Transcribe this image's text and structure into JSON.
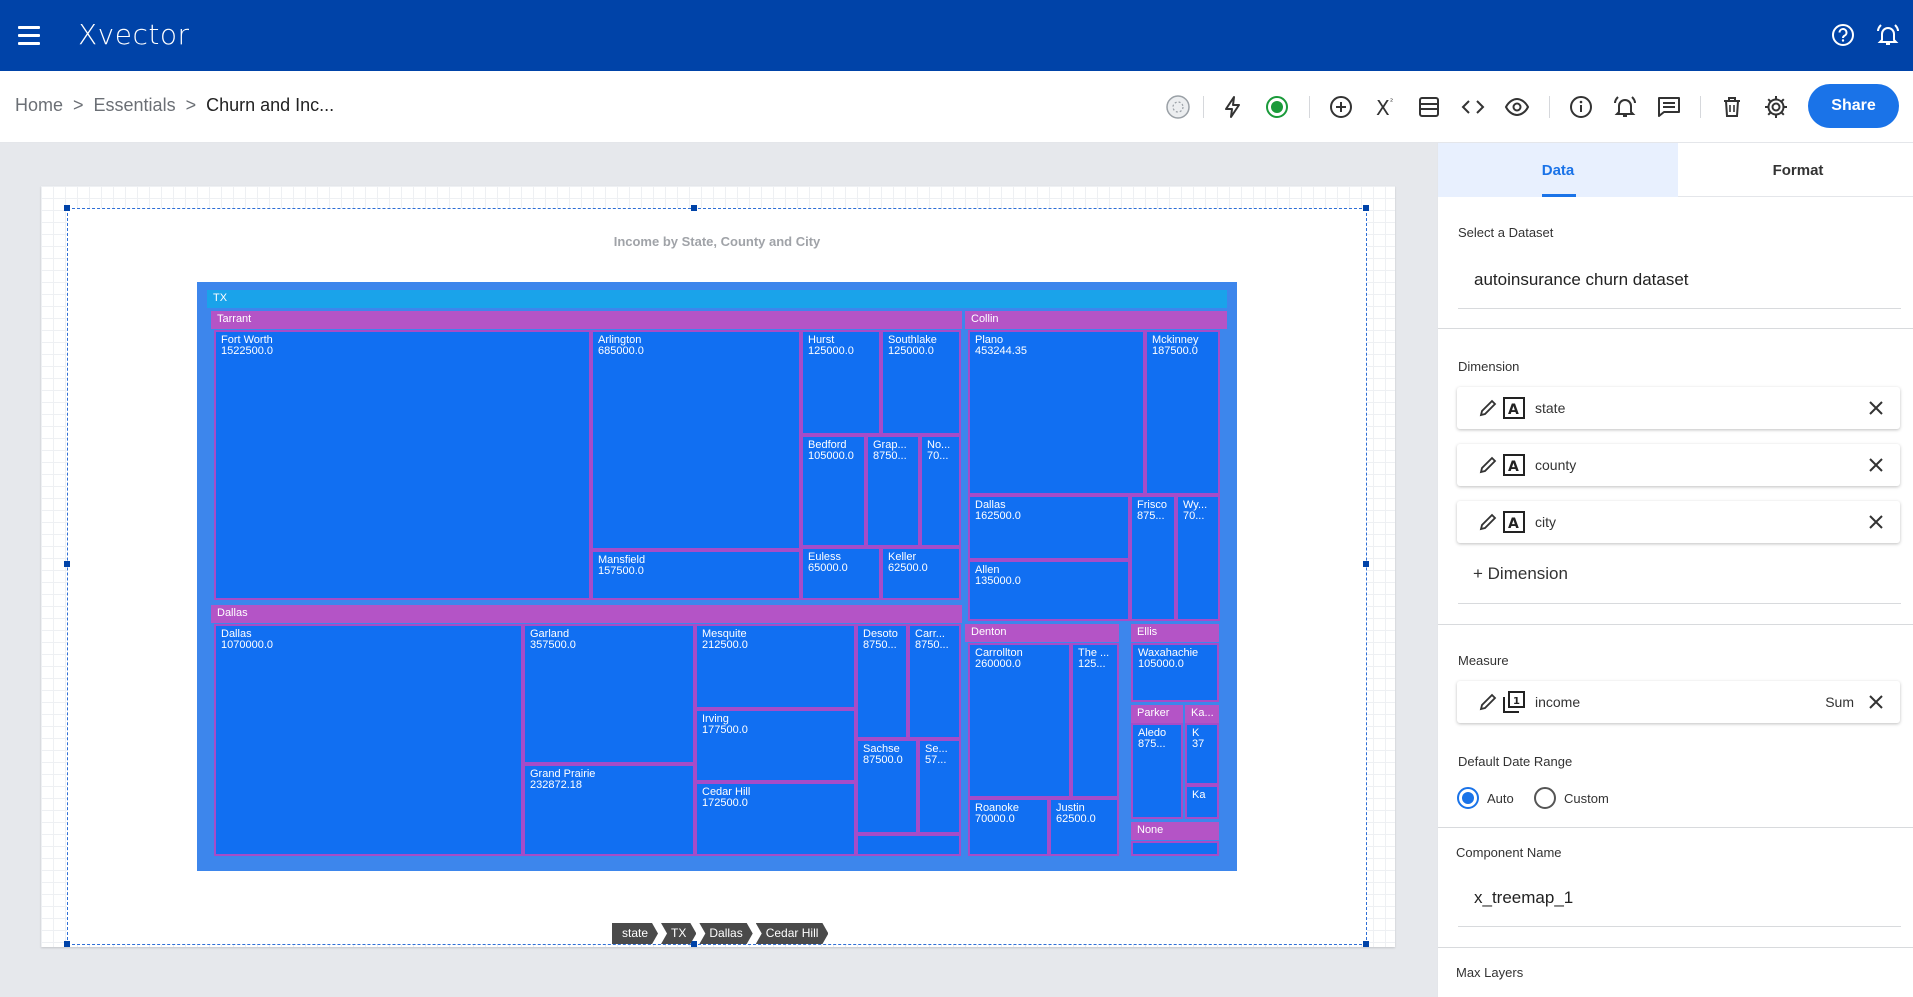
{
  "app": {
    "logo": "Xvector"
  },
  "breadcrumb": {
    "items": [
      "Home",
      "Essentials"
    ],
    "current": "Churn and Inc..."
  },
  "toolbar": {
    "share_label": "Share"
  },
  "chart": {
    "title": "Income by State, County and City",
    "state": "TX",
    "counties": [
      "Tarrant",
      "Collin",
      "Dallas",
      "Denton",
      "Ellis",
      "Parker",
      "Ka...",
      "None"
    ],
    "cells": [
      {
        "label": "Fort Worth",
        "value": "1522500.0"
      },
      {
        "label": "Arlington",
        "value": "685000.0"
      },
      {
        "label": "Hurst",
        "value": "125000.0"
      },
      {
        "label": "Southlake",
        "value": "125000.0"
      },
      {
        "label": "Bedford",
        "value": "105000.0"
      },
      {
        "label": "Grap...",
        "value": "8750..."
      },
      {
        "label": "No...",
        "value": "70..."
      },
      {
        "label": "Mansfield",
        "value": "157500.0"
      },
      {
        "label": "Euless",
        "value": "65000.0"
      },
      {
        "label": "Keller",
        "value": "62500.0"
      },
      {
        "label": "Plano",
        "value": "453244.35"
      },
      {
        "label": "Mckinney",
        "value": "187500.0"
      },
      {
        "label": "Dallas",
        "value": "162500.0"
      },
      {
        "label": "Frisco",
        "value": "875..."
      },
      {
        "label": "Wy...",
        "value": "70..."
      },
      {
        "label": "Allen",
        "value": "135000.0"
      },
      {
        "label": "Dallas",
        "value": "1070000.0"
      },
      {
        "label": "Garland",
        "value": "357500.0"
      },
      {
        "label": "Mesquite",
        "value": "212500.0"
      },
      {
        "label": "Desoto",
        "value": "8750..."
      },
      {
        "label": "Carr...",
        "value": "8750..."
      },
      {
        "label": "Irving",
        "value": "177500.0"
      },
      {
        "label": "Grand Prairie",
        "value": "232872.18"
      },
      {
        "label": "Sachse",
        "value": "87500.0"
      },
      {
        "label": "Se...",
        "value": "57..."
      },
      {
        "label": "Cedar Hill",
        "value": "172500.0"
      },
      {
        "label": "Carrollton",
        "value": "260000.0"
      },
      {
        "label": "The ...",
        "value": "125..."
      },
      {
        "label": "Roanoke",
        "value": "70000.0"
      },
      {
        "label": "Justin",
        "value": "62500.0"
      },
      {
        "label": "Waxahachie",
        "value": "105000.0"
      },
      {
        "label": "Aledo",
        "value": "875..."
      },
      {
        "label": "K",
        "value": "37"
      },
      {
        "label": "Ka",
        "value": ""
      }
    ],
    "drill_path": [
      "state",
      "TX",
      "Dallas",
      "Cedar Hill"
    ]
  },
  "panel": {
    "tabs": [
      "Data",
      "Format"
    ],
    "dataset_label": "Select a Dataset",
    "dataset_value": "autoinsurance churn dataset",
    "dimension_label": "Dimension",
    "dimensions": [
      "state",
      "county",
      "city"
    ],
    "add_dimension": "+ Dimension",
    "measure_label": "Measure",
    "measure": {
      "field": "income",
      "agg": "Sum"
    },
    "date_range_label": "Default Date Range",
    "date_range_options": [
      "Auto",
      "Custom"
    ],
    "component_name_label": "Component Name",
    "component_name": "x_treemap_1",
    "max_layers_label": "Max Layers"
  },
  "colors": {
    "appbar": "#0043a8",
    "accent": "#1a73e8",
    "cell": "#116ff2",
    "county_band": "#b454c6",
    "state_band": "#1aa3ea"
  }
}
